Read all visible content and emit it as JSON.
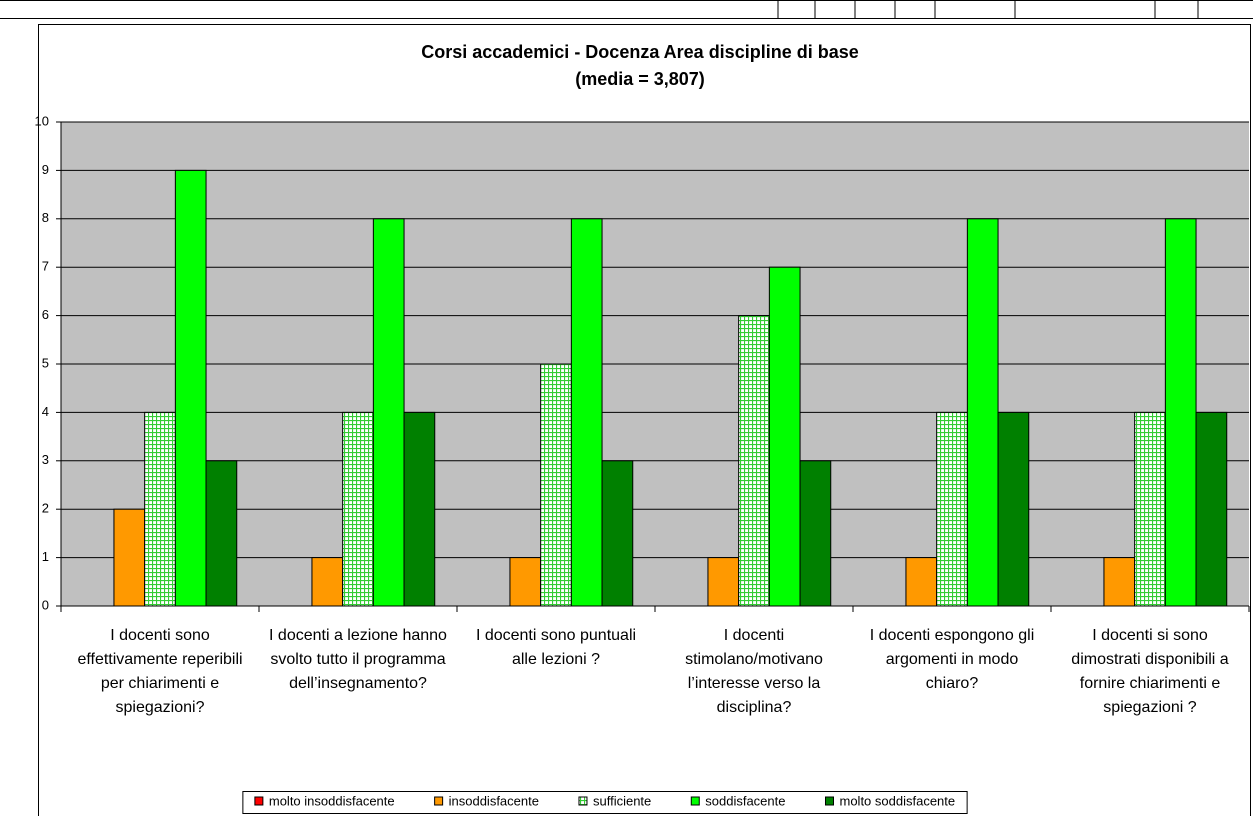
{
  "chart_data": {
    "type": "bar",
    "title": "Corsi accademici - Docenza Area discipline di base",
    "subtitle": "(media = 3,807)",
    "categories": [
      "I docenti sono effettivamente reperibili per chiarimenti e spiegazioni?",
      "I docenti a lezione hanno svolto tutto il programma dell’insegnamento?",
      "I docenti sono puntuali alle lezioni ?",
      "I docenti stimolano/motivano l’interesse verso la disciplina?",
      "I docenti espongono gli argomenti in modo chiaro?",
      "I docenti si sono dimostrati disponibili a fornire chiarimenti e spiegazioni ?"
    ],
    "series": [
      {
        "name": "molto insoddisfacente",
        "color": "#ff0000",
        "values": [
          0,
          0,
          0,
          0,
          0,
          0
        ]
      },
      {
        "name": "insoddisfacente",
        "color": "#ff9900",
        "values": [
          2,
          1,
          1,
          1,
          1,
          1
        ]
      },
      {
        "name": "sufficiente",
        "color": "#33cc33",
        "pattern": "grid",
        "values": [
          4,
          4,
          5,
          6,
          4,
          4
        ]
      },
      {
        "name": "soddisfacente",
        "color": "#00ff00",
        "values": [
          9,
          8,
          8,
          7,
          8,
          8
        ]
      },
      {
        "name": "molto soddisfacente",
        "color": "#008000",
        "values": [
          3,
          4,
          3,
          3,
          4,
          4
        ]
      }
    ],
    "ylim": [
      0,
      10
    ],
    "yticks": [
      0,
      1,
      2,
      3,
      4,
      5,
      6,
      7,
      8,
      9,
      10
    ],
    "plot_background": "#c0c0c0",
    "legend": "bottom"
  }
}
